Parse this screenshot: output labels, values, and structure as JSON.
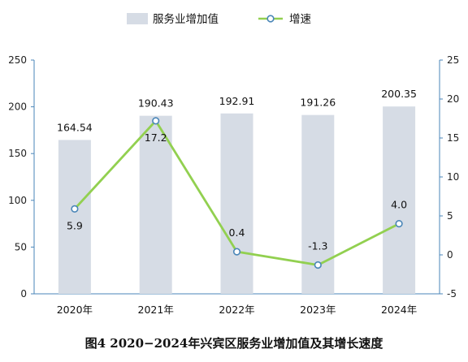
{
  "chart_data": {
    "type": "bar",
    "categories": [
      "2020年",
      "2021年",
      "2022年",
      "2023年",
      "2024年"
    ],
    "series": [
      {
        "name": "服务业增加值",
        "type": "bar",
        "axis": "left",
        "values": [
          164.54,
          190.43,
          192.91,
          191.26,
          200.35
        ],
        "labels": [
          "164.54",
          "190.43",
          "192.91",
          "191.26",
          "200.35"
        ],
        "color": "#D6DCE5"
      },
      {
        "name": "增速",
        "type": "line",
        "axis": "right",
        "values": [
          5.9,
          17.2,
          0.4,
          -1.3,
          4.0
        ],
        "labels": [
          "5.9",
          "17.2",
          "0.4",
          "-1.3",
          "4.0"
        ],
        "color": "#92D050",
        "marker_color": "#4A86B8"
      }
    ],
    "y_left": {
      "min": 0,
      "max": 250,
      "ticks": [
        "0",
        "50",
        "100",
        "150",
        "200",
        "250"
      ]
    },
    "y_right": {
      "min": -5,
      "max": 25,
      "ticks": [
        "-5",
        "0",
        "5",
        "10",
        "15",
        "20",
        "25"
      ]
    },
    "legend_position": "top",
    "grid": false,
    "caption": "图4  2020−2024年兴宾区服务业增加值及其增长速度"
  }
}
